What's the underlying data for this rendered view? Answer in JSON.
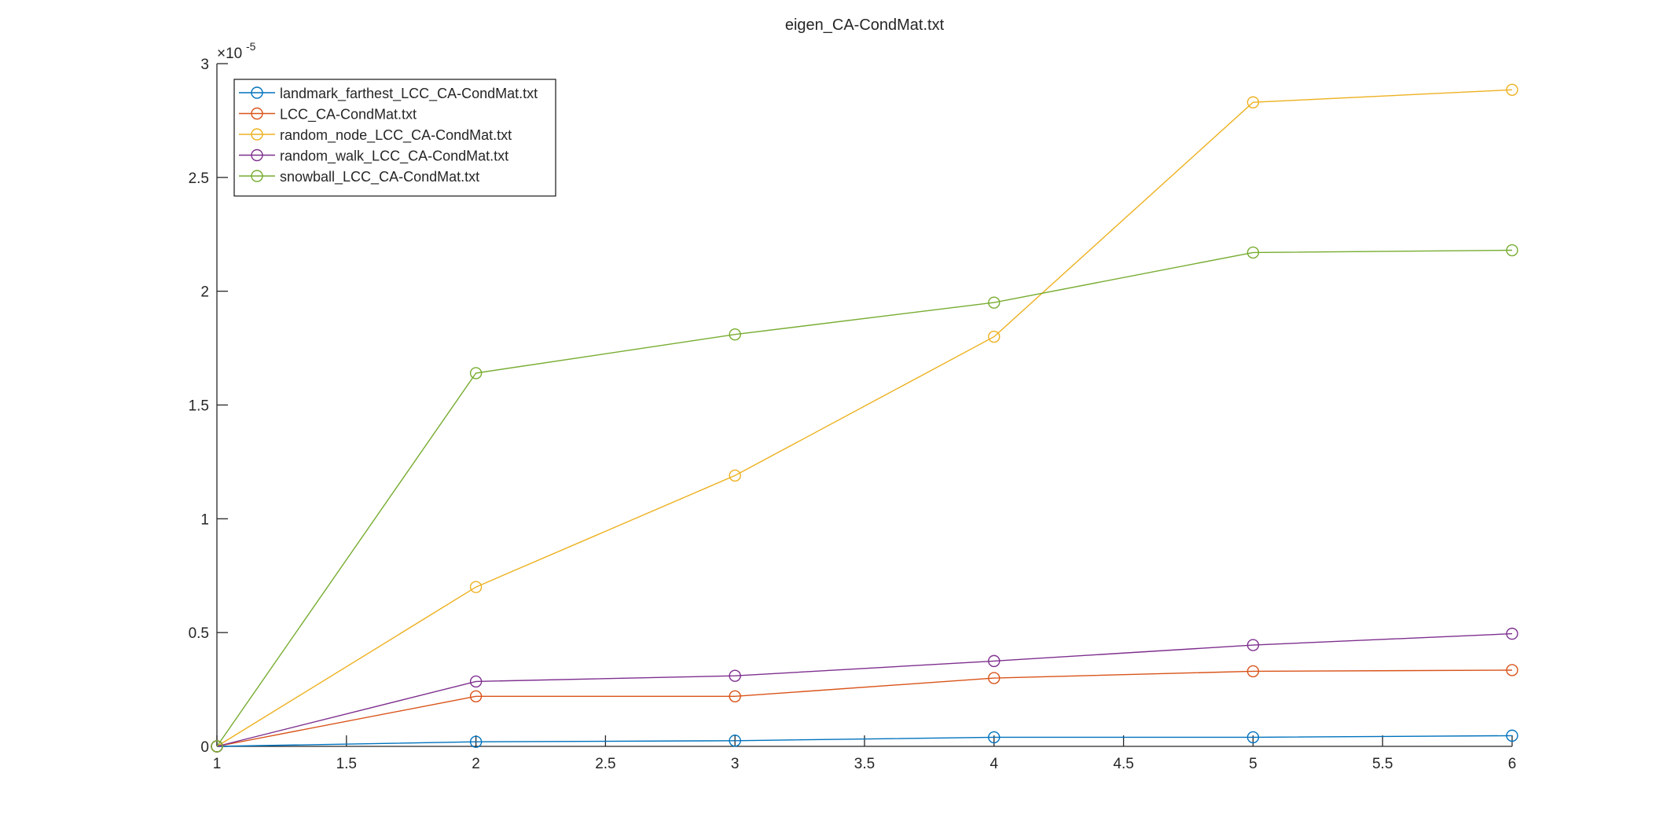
{
  "chart_data": {
    "type": "line",
    "title": "eigen_CA-CondMat.txt",
    "xlabel": "",
    "ylabel": "",
    "y_multiplier": "×10",
    "y_exponent": "-5",
    "xlim": [
      1,
      6
    ],
    "ylim": [
      0,
      3
    ],
    "x_ticks": [
      1,
      1.5,
      2,
      2.5,
      3,
      3.5,
      4,
      4.5,
      5,
      5.5,
      6
    ],
    "x_tick_labels": [
      "1",
      "1.5",
      "2",
      "2.5",
      "3",
      "3.5",
      "4",
      "4.5",
      "5",
      "5.5",
      "6"
    ],
    "y_ticks": [
      0,
      0.5,
      1,
      1.5,
      2,
      2.5,
      3
    ],
    "y_tick_labels": [
      "0",
      "0.5",
      "1",
      "1.5",
      "2",
      "2.5",
      "3"
    ],
    "grid": false,
    "legend_position": "top-left",
    "x": [
      1,
      2,
      3,
      4,
      5,
      6
    ],
    "series": [
      {
        "name": "landmark_farthest_LCC_CA-CondMat.txt",
        "color": "#0072BD",
        "marker": "circle",
        "values": [
          0,
          0.02,
          0.025,
          0.04,
          0.04,
          0.047
        ]
      },
      {
        "name": "LCC_CA-CondMat.txt",
        "color": "#D95319",
        "marker": "circle",
        "values": [
          0,
          0.22,
          0.22,
          0.3,
          0.33,
          0.335
        ]
      },
      {
        "name": "random_node_LCC_CA-CondMat.txt",
        "color": "#EDB120",
        "marker": "circle",
        "values": [
          0,
          0.7,
          1.19,
          1.8,
          2.83,
          2.885
        ]
      },
      {
        "name": "random_walk_LCC_CA-CondMat.txt",
        "color": "#7E2F8E",
        "marker": "circle",
        "values": [
          0,
          0.285,
          0.31,
          0.375,
          0.445,
          0.495
        ]
      },
      {
        "name": "snowball_LCC_CA-CondMat.txt",
        "color": "#77AC30",
        "marker": "circle",
        "values": [
          0,
          1.64,
          1.81,
          1.95,
          2.17,
          2.18
        ]
      }
    ]
  }
}
